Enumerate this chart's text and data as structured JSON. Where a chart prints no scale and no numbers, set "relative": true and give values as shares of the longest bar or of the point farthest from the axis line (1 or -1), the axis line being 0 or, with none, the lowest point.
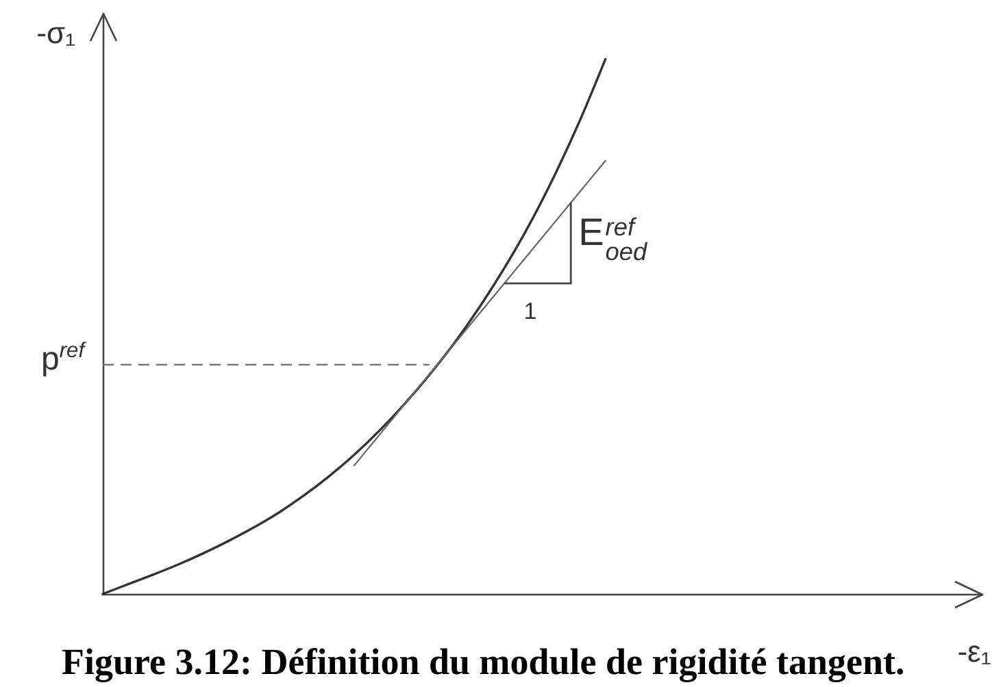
{
  "chart_data": {
    "type": "line",
    "title": "Figure 3.12: Définition du module de rigidité tangent.",
    "xlabel": "-ε₁",
    "ylabel": "-σ₁",
    "relative": true,
    "categories": [
      null,
      null,
      null,
      null,
      null,
      null,
      null,
      null,
      null,
      null,
      null,
      null,
      null,
      null,
      null,
      null,
      null,
      null,
      null,
      null,
      null,
      null,
      null,
      null,
      null,
      null,
      null,
      null,
      null,
      null,
      null,
      null,
      null,
      null,
      null,
      null
    ],
    "series": [
      {
        "color": "#333333",
        "values": [
          0,
          0.018,
          0.036,
          0.055,
          0.076,
          0.099,
          0.124,
          0.152,
          0.184,
          0.22,
          0.26,
          0.305,
          0.355,
          0.41,
          0.47,
          0.537,
          0.611,
          0.693,
          0.785,
          0.887,
          1,
          null,
          null,
          null,
          null,
          null,
          null,
          null,
          null,
          null,
          null,
          null,
          null,
          null,
          null,
          null
        ]
      },
      {
        "color": "#666666",
        "values": [
          null,
          null,
          null,
          null,
          null,
          null,
          null,
          null,
          null,
          null,
          0.24,
          null,
          null,
          null,
          null,
          null,
          null,
          null,
          null,
          null,
          0.81,
          null,
          null,
          null,
          null,
          null,
          null,
          null,
          null,
          null,
          null,
          null,
          null,
          null,
          null,
          null
        ]
      }
    ],
    "ref_lines": [
      {
        "axis": "y",
        "value": 0.43,
        "label": "p$^{ref}$",
        "color": "#777777",
        "line_style": "dashed"
      }
    ],
    "annotations": [
      "1",
      "E$^{ref}$$_{oed}$"
    ],
    "marker": "none",
    "line_style": "solid",
    "grid": false
  }
}
